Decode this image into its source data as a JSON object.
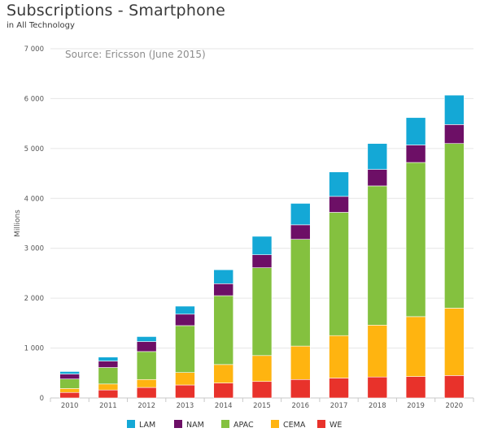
{
  "header": {
    "title": "Subscriptions - Smartphone",
    "subtitle": "in All Technology"
  },
  "chart_data": {
    "type": "bar",
    "stacked": true,
    "title": "Subscriptions - Smartphone",
    "subtitle": "in All Technology",
    "annotation": "Source: Ericsson (June 2015)",
    "xlabel": "",
    "ylabel": "Millions",
    "ylim": [
      0,
      7000
    ],
    "yticks": [
      0,
      1000,
      2000,
      3000,
      4000,
      5000,
      6000,
      7000
    ],
    "ytick_labels": [
      "0",
      "1 000",
      "2 000",
      "3 000",
      "4 000",
      "5 000",
      "6 000",
      "7 000"
    ],
    "grid": true,
    "legend_position": "bottom",
    "categories": [
      "2010",
      "2011",
      "2012",
      "2013",
      "2014",
      "2015",
      "2016",
      "2017",
      "2018",
      "2019",
      "2020"
    ],
    "series": [
      {
        "name": "WE",
        "color": "#e8322b",
        "values": [
          110,
          160,
          210,
          260,
          300,
          330,
          370,
          400,
          420,
          430,
          450
        ]
      },
      {
        "name": "CEMA",
        "color": "#ffb410",
        "values": [
          80,
          120,
          160,
          250,
          370,
          520,
          670,
          850,
          1040,
          1200,
          1350
        ]
      },
      {
        "name": "APAC",
        "color": "#84c13f",
        "values": [
          190,
          330,
          560,
          940,
          1380,
          1760,
          2140,
          2470,
          2790,
          3090,
          3300
        ]
      },
      {
        "name": "NAM",
        "color": "#6d0f66",
        "values": [
          100,
          130,
          200,
          230,
          240,
          260,
          290,
          320,
          330,
          350,
          380
        ]
      },
      {
        "name": "LAM",
        "color": "#14a8d6",
        "values": [
          50,
          80,
          100,
          160,
          280,
          370,
          430,
          490,
          520,
          550,
          590
        ]
      }
    ],
    "legend_order": [
      "LAM",
      "NAM",
      "APAC",
      "CEMA",
      "WE"
    ]
  }
}
